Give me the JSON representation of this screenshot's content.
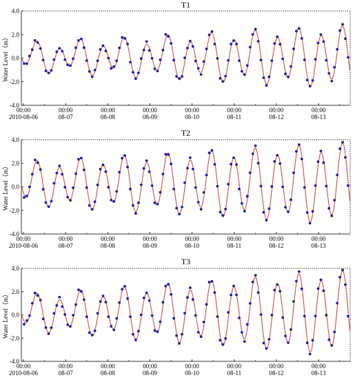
{
  "chart_data": [
    {
      "type": "line",
      "title": "T1",
      "ylabel": "Water Level（m）",
      "xlabel": "",
      "ylim": [
        -4.0,
        4.0
      ],
      "yticks": [
        "4.0",
        "2.0",
        "0.0",
        "-2.0",
        "-4.0"
      ],
      "xticks": [
        {
          "top": "00:00",
          "bottom": "2010-08-06"
        },
        {
          "top": "00:00",
          "bottom": "08-07"
        },
        {
          "top": "00:00",
          "bottom": "08-08"
        },
        {
          "top": "00:00",
          "bottom": "08-09"
        },
        {
          "top": "00:00",
          "bottom": "08-10"
        },
        {
          "top": "00:00",
          "bottom": "08-11"
        },
        {
          "top": "00:00",
          "bottom": "08-12"
        },
        {
          "top": "00:00",
          "bottom": "08-13"
        }
      ],
      "x_range_days": [
        -0.05,
        7.75
      ],
      "tide": {
        "baseline": 0.1,
        "amp_start": 0.9,
        "amp_end": 2.3,
        "diurnal_amp": 0.5,
        "period_hours": 12.42,
        "phase_hours": 6.0
      },
      "series_styles": {
        "line_color": "#c0504d",
        "point_color": "#1c1ca8"
      }
    },
    {
      "type": "line",
      "title": "T2",
      "ylabel": "Water Level（m）",
      "xlabel": "",
      "ylim": [
        -4.0,
        4.0
      ],
      "yticks": [
        "4.0",
        "2.0",
        "0.0",
        "-2.0",
        "-4.0"
      ],
      "xticks": [
        {
          "top": "00:00",
          "bottom": "2010-08-06"
        },
        {
          "top": "00:00",
          "bottom": "08-07"
        },
        {
          "top": "00:00",
          "bottom": "08-08"
        },
        {
          "top": "00:00",
          "bottom": "08-09"
        },
        {
          "top": "00:00",
          "bottom": "08-10"
        },
        {
          "top": "00:00",
          "bottom": "08-11"
        },
        {
          "top": "00:00",
          "bottom": "08-12"
        },
        {
          "top": "00:00",
          "bottom": "08-13"
        }
      ],
      "x_range_days": [
        -0.05,
        7.75
      ],
      "tide": {
        "baseline": 0.3,
        "amp_start": 1.5,
        "amp_end": 3.1,
        "diurnal_amp": 0.5,
        "period_hours": 12.42,
        "phase_hours": 6.0
      },
      "series_styles": {
        "line_color": "#c0504d",
        "point_color": "#1c1ca8"
      }
    },
    {
      "type": "line",
      "title": "T3",
      "ylabel": "Water Level（m）",
      "xlabel": "",
      "ylim": [
        -4.0,
        4.0
      ],
      "yticks": [
        "4.0",
        "2.0",
        "0.0",
        "-2.0",
        "-4.0"
      ],
      "xticks": [
        {
          "top": "00:00",
          "bottom": "2010-08-06"
        },
        {
          "top": "00:00",
          "bottom": "08-07"
        },
        {
          "top": "00:00",
          "bottom": "08-08"
        },
        {
          "top": "00:00",
          "bottom": "08-09"
        },
        {
          "top": "00:00",
          "bottom": "08-10"
        },
        {
          "top": "00:00",
          "bottom": "08-11"
        },
        {
          "top": "00:00",
          "bottom": "08-12"
        },
        {
          "top": "00:00",
          "bottom": "08-13"
        }
      ],
      "x_range_days": [
        -0.05,
        7.75
      ],
      "tide": {
        "baseline": 0.2,
        "amp_start": 1.2,
        "amp_end": 3.3,
        "diurnal_amp": 0.5,
        "period_hours": 12.42,
        "phase_hours": 6.0
      },
      "series_styles": {
        "line_color": "#c0504d",
        "point_color": "#1c1ca8"
      }
    }
  ]
}
